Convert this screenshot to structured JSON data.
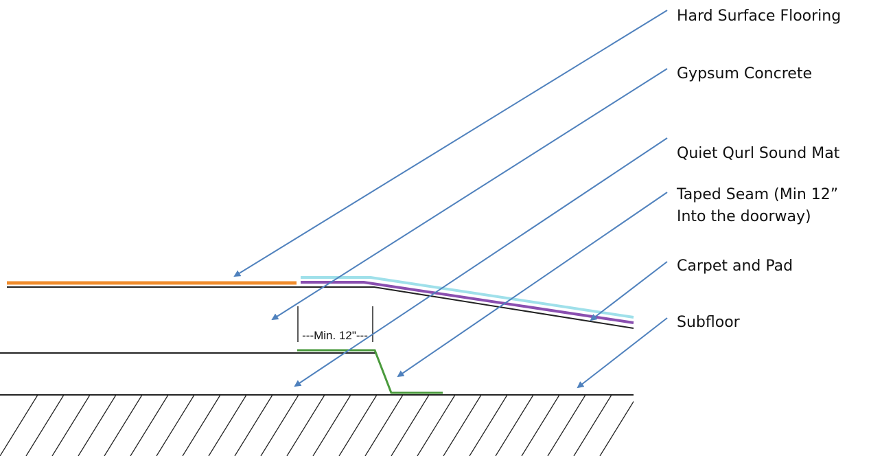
{
  "labels": {
    "hard_surface": "Hard Surface Flooring",
    "gypsum": "Gypsum Concrete",
    "sound_mat": "Quiet Qurl Sound Mat",
    "taped_seam_line1": "Taped Seam (Min 12”",
    "taped_seam_line2": "Into the doorway)",
    "carpet": "Carpet and Pad",
    "subfloor": "Subfloor"
  },
  "dimension": {
    "text": "---Min. 12\"---"
  },
  "colors": {
    "hard_surface": "#f08c2c",
    "carpet": "#9fe0ea",
    "carpet_pad": "#8a4fb0",
    "taped_seam": "#4a9a3c",
    "arrow": "#4f81bd",
    "line": "#222222"
  }
}
